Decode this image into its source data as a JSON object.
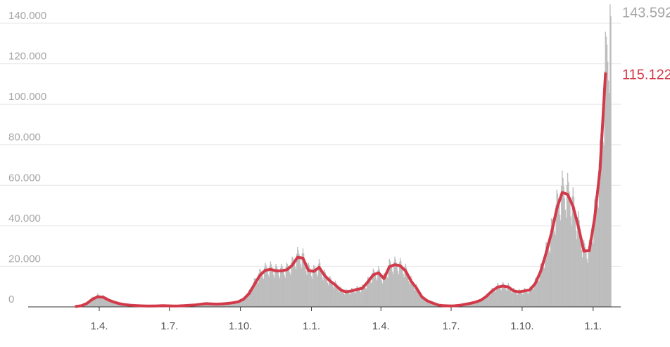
{
  "chart_data": {
    "type": "bar",
    "title": "",
    "xlabel": "",
    "ylabel": "",
    "ylim": [
      0,
      140000
    ],
    "yticks": [
      {
        "value": 0,
        "label": "0"
      },
      {
        "value": 20000,
        "label": "20.000"
      },
      {
        "value": 40000,
        "label": "40.000"
      },
      {
        "value": 60000,
        "label": "60.000"
      },
      {
        "value": 80000,
        "label": "80.000"
      },
      {
        "value": 100000,
        "label": "100.000"
      },
      {
        "value": 120000,
        "label": "120.000"
      },
      {
        "value": 140000,
        "label": "140.000"
      }
    ],
    "xrange": [
      "2020-03-01",
      "2022-01-24"
    ],
    "xticks": [
      {
        "date": "2020-04-01",
        "label": "1.4."
      },
      {
        "date": "2020-07-01",
        "label": "1.7."
      },
      {
        "date": "2020-10-01",
        "label": "1.10."
      },
      {
        "date": "2021-01-01",
        "label": "1.1."
      },
      {
        "date": "2021-04-01",
        "label": "1.4."
      },
      {
        "date": "2021-07-01",
        "label": "1.7."
      },
      {
        "date": "2021-10-01",
        "label": "1.10."
      },
      {
        "date": "2022-01-01",
        "label": "1.1."
      }
    ],
    "grid": true,
    "colors": {
      "daily": "#bdbdbd",
      "average": "#d23a4a"
    },
    "series": [
      {
        "type": "bar",
        "end_label": "143.592",
        "end_value": 143592,
        "values_weekly": [
          [
            "2020-03-02",
            300
          ],
          [
            "2020-03-09",
            800
          ],
          [
            "2020-03-16",
            2000
          ],
          [
            "2020-03-23",
            4200
          ],
          [
            "2020-03-30",
            5600
          ],
          [
            "2020-04-06",
            5000
          ],
          [
            "2020-04-13",
            3500
          ],
          [
            "2020-04-20",
            2500
          ],
          [
            "2020-04-27",
            1600
          ],
          [
            "2020-05-04",
            1100
          ],
          [
            "2020-05-11",
            900
          ],
          [
            "2020-05-18",
            700
          ],
          [
            "2020-05-25",
            550
          ],
          [
            "2020-06-01",
            450
          ],
          [
            "2020-06-08",
            400
          ],
          [
            "2020-06-15",
            500
          ],
          [
            "2020-06-22",
            650
          ],
          [
            "2020-06-29",
            550
          ],
          [
            "2020-07-06",
            450
          ],
          [
            "2020-07-13",
            500
          ],
          [
            "2020-07-20",
            650
          ],
          [
            "2020-07-27",
            800
          ],
          [
            "2020-08-03",
            1000
          ],
          [
            "2020-08-10",
            1400
          ],
          [
            "2020-08-17",
            1700
          ],
          [
            "2020-08-24",
            1600
          ],
          [
            "2020-08-31",
            1400
          ],
          [
            "2020-09-07",
            1500
          ],
          [
            "2020-09-14",
            1800
          ],
          [
            "2020-09-21",
            2100
          ],
          [
            "2020-09-28",
            2600
          ],
          [
            "2020-10-05",
            4000
          ],
          [
            "2020-10-12",
            7000
          ],
          [
            "2020-10-19",
            12000
          ],
          [
            "2020-10-26",
            16000
          ],
          [
            "2020-11-02",
            18500
          ],
          [
            "2020-11-09",
            19000
          ],
          [
            "2020-11-16",
            18000
          ],
          [
            "2020-11-23",
            18000
          ],
          [
            "2020-11-30",
            18500
          ],
          [
            "2020-12-07",
            21000
          ],
          [
            "2020-12-14",
            25000
          ],
          [
            "2020-12-21",
            24500
          ],
          [
            "2020-12-28",
            18500
          ],
          [
            "2021-01-04",
            17500
          ],
          [
            "2021-01-11",
            20000
          ],
          [
            "2021-01-18",
            15500
          ],
          [
            "2021-01-25",
            13000
          ],
          [
            "2021-02-01",
            11000
          ],
          [
            "2021-02-08",
            8500
          ],
          [
            "2021-02-15",
            7500
          ],
          [
            "2021-02-22",
            8000
          ],
          [
            "2021-03-01",
            8800
          ],
          [
            "2021-03-08",
            9300
          ],
          [
            "2021-03-15",
            12500
          ],
          [
            "2021-03-22",
            16000
          ],
          [
            "2021-03-29",
            17000
          ],
          [
            "2021-04-05",
            14000
          ],
          [
            "2021-04-12",
            20000
          ],
          [
            "2021-04-19",
            21000
          ],
          [
            "2021-04-26",
            20500
          ],
          [
            "2021-05-03",
            18000
          ],
          [
            "2021-05-10",
            13000
          ],
          [
            "2021-05-17",
            9500
          ],
          [
            "2021-05-24",
            5000
          ],
          [
            "2021-05-31",
            3000
          ],
          [
            "2021-06-07",
            2000
          ],
          [
            "2021-06-14",
            1000
          ],
          [
            "2021-06-21",
            600
          ],
          [
            "2021-06-28",
            500
          ],
          [
            "2021-07-05",
            550
          ],
          [
            "2021-07-12",
            800
          ],
          [
            "2021-07-19",
            1300
          ],
          [
            "2021-07-26",
            1800
          ],
          [
            "2021-08-02",
            2500
          ],
          [
            "2021-08-09",
            3500
          ],
          [
            "2021-08-16",
            5500
          ],
          [
            "2021-08-23",
            8000
          ],
          [
            "2021-08-30",
            10000
          ],
          [
            "2021-09-06",
            10500
          ],
          [
            "2021-09-13",
            10000
          ],
          [
            "2021-09-20",
            8000
          ],
          [
            "2021-09-27",
            7500
          ],
          [
            "2021-10-04",
            8000
          ],
          [
            "2021-10-11",
            8500
          ],
          [
            "2021-10-18",
            12000
          ],
          [
            "2021-10-25",
            18000
          ],
          [
            "2021-11-01",
            27000
          ],
          [
            "2021-11-08",
            37000
          ],
          [
            "2021-11-15",
            49000
          ],
          [
            "2021-11-22",
            57000
          ],
          [
            "2021-11-29",
            56000
          ],
          [
            "2021-12-06",
            50000
          ],
          [
            "2021-12-13",
            40000
          ],
          [
            "2021-12-20",
            28000
          ],
          [
            "2021-12-27",
            28000
          ],
          [
            "2022-01-03",
            45000
          ],
          [
            "2022-01-10",
            70000
          ],
          [
            "2022-01-17",
            115122
          ],
          [
            "2022-01-24",
            143592
          ]
        ]
      },
      {
        "type": "line",
        "end_label": "115.122",
        "end_value": 115122,
        "values_weekly": [
          [
            "2020-03-02",
            200
          ],
          [
            "2020-03-09",
            600
          ],
          [
            "2020-03-16",
            1700
          ],
          [
            "2020-03-23",
            3700
          ],
          [
            "2020-03-30",
            5000
          ],
          [
            "2020-04-06",
            4800
          ],
          [
            "2020-04-13",
            3400
          ],
          [
            "2020-04-20",
            2400
          ],
          [
            "2020-04-27",
            1600
          ],
          [
            "2020-05-04",
            1100
          ],
          [
            "2020-05-11",
            850
          ],
          [
            "2020-05-18",
            650
          ],
          [
            "2020-05-25",
            520
          ],
          [
            "2020-06-01",
            430
          ],
          [
            "2020-06-08",
            400
          ],
          [
            "2020-06-15",
            480
          ],
          [
            "2020-06-22",
            600
          ],
          [
            "2020-06-29",
            520
          ],
          [
            "2020-07-06",
            450
          ],
          [
            "2020-07-13",
            480
          ],
          [
            "2020-07-20",
            620
          ],
          [
            "2020-07-27",
            760
          ],
          [
            "2020-08-03",
            950
          ],
          [
            "2020-08-10",
            1300
          ],
          [
            "2020-08-17",
            1600
          ],
          [
            "2020-08-24",
            1500
          ],
          [
            "2020-08-31",
            1350
          ],
          [
            "2020-09-07",
            1450
          ],
          [
            "2020-09-14",
            1700
          ],
          [
            "2020-09-21",
            2000
          ],
          [
            "2020-09-28",
            2500
          ],
          [
            "2020-10-05",
            3800
          ],
          [
            "2020-10-12",
            6500
          ],
          [
            "2020-10-19",
            11000
          ],
          [
            "2020-10-26",
            15500
          ],
          [
            "2020-11-02",
            18000
          ],
          [
            "2020-11-09",
            18500
          ],
          [
            "2020-11-16",
            17800
          ],
          [
            "2020-11-23",
            17800
          ],
          [
            "2020-11-30",
            18300
          ],
          [
            "2020-12-07",
            20500
          ],
          [
            "2020-12-14",
            24500
          ],
          [
            "2020-12-21",
            24000
          ],
          [
            "2020-12-28",
            18000
          ],
          [
            "2021-01-04",
            17500
          ],
          [
            "2021-01-11",
            19500
          ],
          [
            "2021-01-18",
            15500
          ],
          [
            "2021-01-25",
            12800
          ],
          [
            "2021-02-01",
            10800
          ],
          [
            "2021-02-08",
            8300
          ],
          [
            "2021-02-15",
            7400
          ],
          [
            "2021-02-22",
            7900
          ],
          [
            "2021-03-01",
            8600
          ],
          [
            "2021-03-08",
            9200
          ],
          [
            "2021-03-15",
            12300
          ],
          [
            "2021-03-22",
            15800
          ],
          [
            "2021-03-29",
            16800
          ],
          [
            "2021-04-05",
            14000
          ],
          [
            "2021-04-12",
            19800
          ],
          [
            "2021-04-19",
            20800
          ],
          [
            "2021-04-26",
            20300
          ],
          [
            "2021-05-03",
            17800
          ],
          [
            "2021-05-10",
            12800
          ],
          [
            "2021-05-17",
            9300
          ],
          [
            "2021-05-24",
            5000
          ],
          [
            "2021-05-31",
            3000
          ],
          [
            "2021-06-07",
            1900
          ],
          [
            "2021-06-14",
            950
          ],
          [
            "2021-06-21",
            580
          ],
          [
            "2021-06-28",
            480
          ],
          [
            "2021-07-05",
            520
          ],
          [
            "2021-07-12",
            760
          ],
          [
            "2021-07-19",
            1250
          ],
          [
            "2021-07-26",
            1750
          ],
          [
            "2021-08-02",
            2400
          ],
          [
            "2021-08-09",
            3400
          ],
          [
            "2021-08-16",
            5300
          ],
          [
            "2021-08-23",
            7800
          ],
          [
            "2021-08-30",
            9700
          ],
          [
            "2021-09-06",
            10300
          ],
          [
            "2021-09-13",
            9800
          ],
          [
            "2021-09-20",
            7900
          ],
          [
            "2021-09-27",
            7400
          ],
          [
            "2021-10-04",
            7900
          ],
          [
            "2021-10-11",
            8400
          ],
          [
            "2021-10-18",
            11500
          ],
          [
            "2021-10-25",
            17500
          ],
          [
            "2021-11-01",
            26500
          ],
          [
            "2021-11-08",
            36500
          ],
          [
            "2021-11-15",
            48500
          ],
          [
            "2021-11-22",
            56500
          ],
          [
            "2021-11-29",
            55500
          ],
          [
            "2021-12-06",
            49500
          ],
          [
            "2021-12-13",
            39500
          ],
          [
            "2021-12-20",
            27500
          ],
          [
            "2021-12-27",
            27800
          ],
          [
            "2022-01-03",
            44000
          ],
          [
            "2022-01-10",
            68000
          ],
          [
            "2022-01-17",
            115122
          ]
        ]
      }
    ]
  }
}
